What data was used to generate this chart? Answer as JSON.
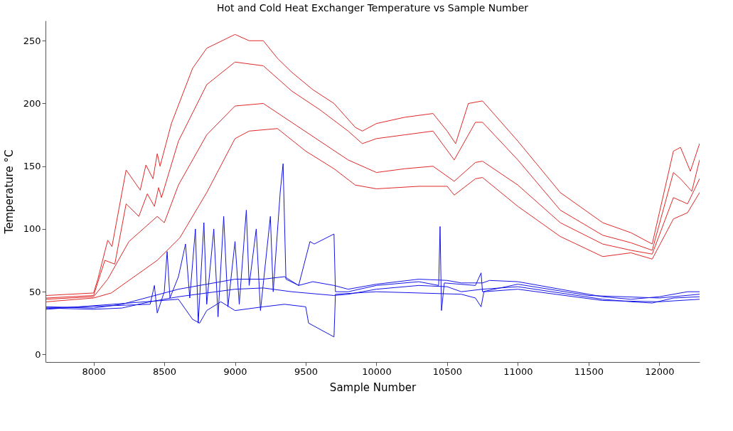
{
  "chart_data": {
    "type": "line",
    "title": "Hot and Cold Heat Exchanger Temperature vs Sample Number",
    "xlabel": "Sample Number",
    "ylabel": "Temperature °C",
    "xlim": [
      7660,
      12285
    ],
    "ylim": [
      -6,
      266
    ],
    "xticks": [
      8000,
      8500,
      9000,
      9500,
      10000,
      10500,
      11000,
      11500,
      12000
    ],
    "yticks": [
      0,
      50,
      100,
      150,
      200,
      250
    ],
    "grid": false,
    "legend": false,
    "marker": "none",
    "line_style": "solid",
    "series": [
      {
        "color": "#e02828",
        "x": [
          7667,
          8000,
          8030,
          8100,
          8130,
          8230,
          8330,
          8370,
          8420,
          8450,
          8470,
          8550,
          8700,
          8800,
          9000,
          9100,
          9200,
          9300,
          9400,
          9550,
          9700,
          9850,
          9900,
          10000,
          10200,
          10400,
          10500,
          10560,
          10650,
          10750,
          11000,
          11300,
          11600,
          11800,
          11950,
          12100,
          12150,
          12220,
          12285
        ],
        "values": [
          47,
          49,
          60,
          91,
          86,
          147,
          131,
          151,
          140,
          160,
          150,
          184,
          228,
          244,
          255,
          250,
          250,
          236,
          225,
          211,
          200,
          181,
          178,
          184,
          189,
          192,
          178,
          168,
          200,
          202,
          170,
          129,
          105,
          97,
          88,
          162,
          165,
          146,
          168
        ]
      },
      {
        "color": "#e02828",
        "x": [
          7667,
          8000,
          8080,
          8150,
          8230,
          8320,
          8380,
          8430,
          8460,
          8480,
          8600,
          8800,
          9000,
          9200,
          9400,
          9600,
          9800,
          9900,
          10000,
          10200,
          10400,
          10550,
          10700,
          10750,
          11000,
          11300,
          11600,
          11800,
          11950,
          12100,
          12150,
          12230,
          12285
        ],
        "values": [
          45,
          47,
          75,
          72,
          120,
          110,
          128,
          118,
          133,
          125,
          170,
          215,
          233,
          230,
          210,
          195,
          178,
          168,
          172,
          175,
          178,
          155,
          185,
          185,
          155,
          115,
          95,
          89,
          83,
          145,
          140,
          130,
          155
        ]
      },
      {
        "color": "#e02828",
        "x": [
          7667,
          8000,
          8100,
          8250,
          8350,
          8450,
          8500,
          8600,
          8800,
          9000,
          9200,
          9400,
          9600,
          9800,
          10000,
          10200,
          10400,
          10550,
          10700,
          10750,
          11000,
          11300,
          11600,
          11800,
          11950,
          12100,
          12200,
          12285
        ],
        "values": [
          44,
          46,
          60,
          90,
          100,
          110,
          105,
          135,
          175,
          198,
          200,
          185,
          170,
          155,
          145,
          148,
          150,
          138,
          153,
          154,
          135,
          105,
          88,
          83,
          80,
          125,
          120,
          140
        ]
      },
      {
        "color": "#e02828",
        "x": [
          7667,
          8000,
          8125,
          8450,
          8610,
          8800,
          9000,
          9100,
          9300,
          9500,
          9700,
          9850,
          10000,
          10300,
          10500,
          10550,
          10700,
          10750,
          11000,
          11300,
          11600,
          11800,
          11950,
          12100,
          12200,
          12285
        ],
        "values": [
          42,
          45,
          49,
          75,
          93,
          129,
          172,
          178,
          180,
          162,
          148,
          135,
          132,
          134,
          134,
          127,
          140,
          141,
          118,
          94,
          78,
          81,
          76,
          108,
          113,
          129
        ]
      },
      {
        "color": "#1414e6",
        "x": [
          7667,
          8000,
          8200,
          8400,
          8600,
          8800,
          9000,
          9200,
          9350,
          9450,
          9550,
          9700,
          9800,
          10000,
          10300,
          10500,
          10600,
          10750,
          10800,
          11000,
          11300,
          11600,
          11800,
          12000,
          12200,
          12285
        ],
        "values": [
          38,
          37,
          40,
          46,
          52,
          56,
          60,
          60,
          62,
          55,
          58,
          55,
          52,
          56,
          60,
          59,
          57,
          57,
          59,
          58,
          52,
          46,
          44,
          46,
          50,
          50
        ]
      },
      {
        "color": "#1414e6",
        "x": [
          7667,
          8000,
          8200,
          8400,
          8600,
          8800,
          9000,
          9200,
          9400,
          9700,
          9800,
          10000,
          10300,
          10500,
          10600,
          10750,
          11000,
          11300,
          11600,
          11800,
          11950,
          12100,
          12285
        ],
        "values": [
          37,
          36,
          37,
          42,
          46,
          49,
          52,
          53,
          50,
          47,
          48,
          52,
          55,
          54,
          50,
          52,
          54,
          49,
          44,
          42,
          41,
          45,
          46
        ]
      },
      {
        "color": "#1414e6",
        "x": [
          7667,
          8400,
          8430,
          8450,
          8500,
          8520,
          8540,
          8600,
          8650,
          8680,
          8720,
          8740,
          8780,
          8800,
          8850,
          8880,
          8920,
          8950,
          9000,
          9030,
          9080,
          9100,
          9150,
          9180,
          9250,
          9270,
          9320,
          9340,
          9360,
          9450,
          9530,
          9560,
          9700,
          9710,
          9800,
          10000,
          10300,
          10440,
          10450,
          10460,
          10480,
          10700,
          10740,
          10750,
          11000,
          11500,
          12000,
          12285
        ],
        "values": [
          37,
          40,
          55,
          33,
          50,
          82,
          45,
          62,
          88,
          45,
          100,
          25,
          105,
          40,
          100,
          30,
          110,
          38,
          90,
          40,
          115,
          55,
          100,
          35,
          110,
          50,
          130,
          152,
          60,
          55,
          90,
          88,
          96,
          50,
          50,
          55,
          58,
          55,
          102,
          35,
          57,
          55,
          65,
          50,
          56,
          47,
          45,
          48
        ]
      },
      {
        "color": "#1414e6",
        "x": [
          7667,
          8600,
          8700,
          8750,
          8800,
          8900,
          9000,
          9200,
          9350,
          9500,
          9520,
          9700,
          9710,
          10000,
          10600,
          10700,
          10740,
          10760,
          11000,
          11600,
          12000,
          12285
        ],
        "values": [
          36,
          44,
          28,
          25,
          35,
          42,
          35,
          38,
          40,
          38,
          25,
          14,
          48,
          50,
          48,
          45,
          38,
          50,
          52,
          43,
          42,
          44
        ]
      }
    ]
  }
}
